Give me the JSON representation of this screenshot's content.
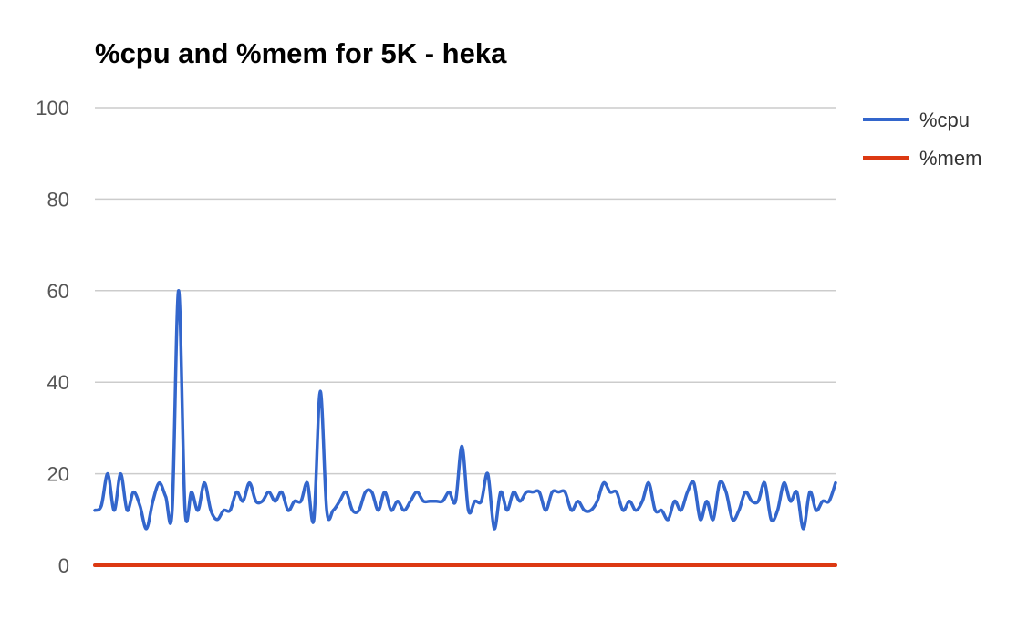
{
  "chart_data": {
    "type": "line",
    "title": "%cpu and %mem for 5K - heka",
    "xlabel": "",
    "ylabel": "",
    "ylim": [
      0,
      100
    ],
    "yticks": [
      "0",
      "20",
      "40",
      "60",
      "80",
      "100"
    ],
    "grid": true,
    "legend_position": "right",
    "series": [
      {
        "name": "%cpu",
        "color": "#3366cc",
        "values": [
          12,
          13,
          20,
          12,
          20,
          12,
          16,
          13,
          8,
          14,
          18,
          15,
          12,
          60,
          12,
          16,
          12,
          18,
          12,
          10,
          12,
          12,
          16,
          14,
          18,
          14,
          14,
          16,
          14,
          16,
          12,
          14,
          14,
          18,
          10,
          38,
          12,
          12,
          14,
          16,
          12,
          12,
          16,
          16,
          12,
          16,
          12,
          14,
          12,
          14,
          16,
          14,
          14,
          14,
          14,
          16,
          14,
          26,
          12,
          14,
          14,
          20,
          8,
          16,
          12,
          16,
          14,
          16,
          16,
          16,
          12,
          16,
          16,
          16,
          12,
          14,
          12,
          12,
          14,
          18,
          16,
          16,
          12,
          14,
          12,
          14,
          18,
          12,
          12,
          10,
          14,
          12,
          16,
          18,
          10,
          14,
          10,
          18,
          16,
          10,
          12,
          16,
          14,
          14,
          18,
          10,
          12,
          18,
          14,
          16,
          8,
          16,
          12,
          14,
          14,
          18
        ]
      },
      {
        "name": "%mem",
        "color": "#dc3912",
        "values": [
          0,
          0
        ]
      }
    ]
  }
}
